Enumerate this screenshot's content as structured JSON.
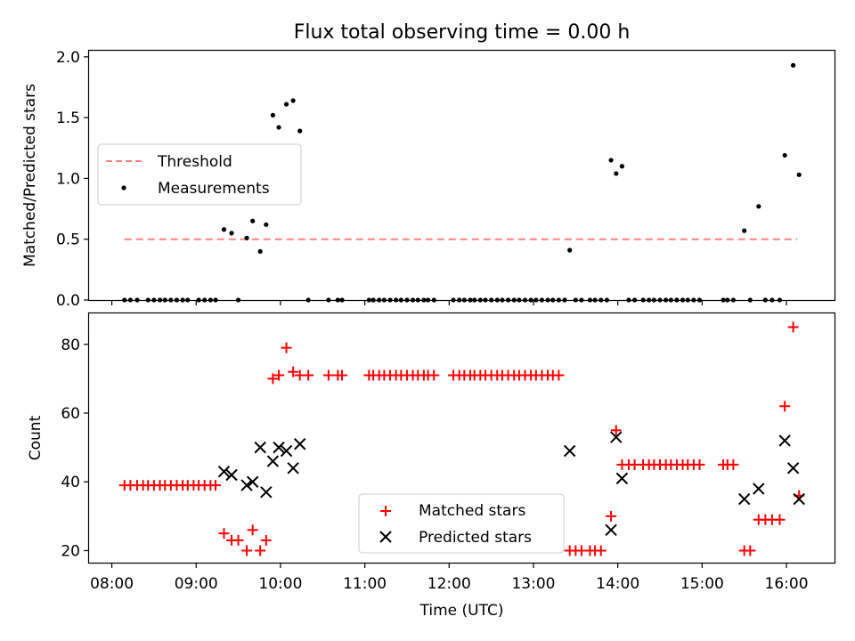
{
  "chart_data": [
    {
      "type": "scatter",
      "title": "Flux total observing time = 0.00 h",
      "xlabel": "",
      "ylabel": "Matched/Predicted stars",
      "ylim": [
        0.0,
        2.05
      ],
      "yticks": [
        0.0,
        0.5,
        1.0,
        1.5,
        2.0
      ],
      "ytick_labels": [
        "0.0",
        "0.5",
        "1.0",
        "1.5",
        "2.0"
      ],
      "legend": {
        "placement": "center-left",
        "entries": [
          "Threshold",
          "Measurements"
        ]
      },
      "threshold": {
        "name": "Threshold",
        "value": 0.5,
        "x_range": [
          8.15,
          16.13
        ],
        "color": "#ff8080"
      },
      "series": [
        {
          "name": "Measurements",
          "color": "#000000",
          "x": [
            8.15,
            8.22,
            8.3,
            8.43,
            8.5,
            8.57,
            8.63,
            8.7,
            8.77,
            8.84,
            8.9,
            9.03,
            9.1,
            9.17,
            9.23,
            9.33,
            9.42,
            9.5,
            9.6,
            9.67,
            9.76,
            9.83,
            9.91,
            9.98,
            10.07,
            10.15,
            10.23,
            10.33,
            10.57,
            10.68,
            10.73,
            11.05,
            11.1,
            11.17,
            11.23,
            11.3,
            11.37,
            11.43,
            11.5,
            11.57,
            11.63,
            11.7,
            11.75,
            11.82,
            12.05,
            12.12,
            12.18,
            12.25,
            12.3,
            12.37,
            12.43,
            12.5,
            12.57,
            12.63,
            12.7,
            12.77,
            12.83,
            12.9,
            12.97,
            13.03,
            13.1,
            13.17,
            13.23,
            13.3,
            13.37,
            13.43,
            13.5,
            13.57,
            13.67,
            13.73,
            13.8,
            13.87,
            13.92,
            13.98,
            14.05,
            14.13,
            14.2,
            14.3,
            14.37,
            14.43,
            14.5,
            14.57,
            14.63,
            14.7,
            14.77,
            14.83,
            14.9,
            14.97,
            15.25,
            15.3,
            15.37,
            15.5,
            15.57,
            15.67,
            15.75,
            15.83,
            15.92,
            15.98,
            16.08,
            16.15
          ],
          "y": [
            0,
            0,
            0,
            0,
            0,
            0,
            0,
            0,
            0,
            0,
            0,
            0,
            0,
            0,
            0,
            0.58,
            0.55,
            0,
            0.51,
            0.65,
            0.4,
            0.62,
            1.52,
            1.42,
            1.61,
            1.64,
            1.39,
            0,
            0,
            0,
            0,
            0,
            0,
            0,
            0,
            0,
            0,
            0,
            0,
            0,
            0,
            0,
            0,
            0,
            0,
            0,
            0,
            0,
            0,
            0,
            0,
            0,
            0,
            0,
            0,
            0,
            0,
            0,
            0,
            0,
            0,
            0,
            0,
            0,
            0,
            0.41,
            0,
            0,
            0,
            0,
            0,
            0,
            1.15,
            1.04,
            1.1,
            0,
            0,
            0,
            0,
            0,
            0,
            0,
            0,
            0,
            0,
            0,
            0,
            0,
            0,
            0,
            0,
            0.57,
            0,
            0.77,
            0,
            0,
            0,
            1.19,
            1.93,
            1.03
          ]
        }
      ]
    },
    {
      "type": "scatter",
      "title": "",
      "xlabel": "Time (UTC)",
      "ylabel": "Count",
      "xlim": [
        7.73,
        16.57
      ],
      "xticks": [
        8,
        9,
        10,
        11,
        12,
        13,
        14,
        15,
        16
      ],
      "xtick_labels": [
        "08:00",
        "09:00",
        "10:00",
        "11:00",
        "12:00",
        "13:00",
        "14:00",
        "15:00",
        "16:00"
      ],
      "ylim": [
        16.5,
        89
      ],
      "yticks": [
        20,
        40,
        60,
        80
      ],
      "ytick_labels": [
        "20",
        "40",
        "60",
        "80"
      ],
      "legend": {
        "placement": "bottom-center",
        "entries": [
          "Matched stars",
          "Predicted stars"
        ]
      },
      "series": [
        {
          "name": "Matched stars",
          "marker": "plus",
          "color": "#ff0000",
          "x": [
            8.15,
            8.22,
            8.3,
            8.37,
            8.43,
            8.5,
            8.57,
            8.63,
            8.7,
            8.77,
            8.84,
            8.9,
            8.97,
            9.03,
            9.1,
            9.17,
            9.23,
            9.33,
            9.42,
            9.5,
            9.6,
            9.67,
            9.76,
            9.83,
            9.91,
            9.98,
            10.07,
            10.15,
            10.23,
            10.33,
            10.57,
            10.68,
            10.73,
            11.05,
            11.1,
            11.17,
            11.23,
            11.3,
            11.37,
            11.43,
            11.5,
            11.57,
            11.63,
            11.7,
            11.75,
            11.82,
            12.05,
            12.12,
            12.18,
            12.25,
            12.3,
            12.37,
            12.43,
            12.5,
            12.57,
            12.63,
            12.7,
            12.77,
            12.83,
            12.9,
            12.97,
            13.03,
            13.1,
            13.17,
            13.23,
            13.3,
            13.43,
            13.5,
            13.57,
            13.67,
            13.73,
            13.8,
            13.92,
            13.98,
            14.05,
            14.13,
            14.2,
            14.3,
            14.37,
            14.43,
            14.5,
            14.57,
            14.63,
            14.7,
            14.77,
            14.83,
            14.9,
            14.97,
            15.25,
            15.3,
            15.37,
            15.5,
            15.57,
            15.67,
            15.75,
            15.83,
            15.92,
            15.98,
            16.08,
            16.15
          ],
          "y": [
            39,
            39,
            39,
            39,
            39,
            39,
            39,
            39,
            39,
            39,
            39,
            39,
            39,
            39,
            39,
            39,
            39,
            25,
            23,
            23,
            20,
            26,
            20,
            23,
            70,
            71,
            79,
            72,
            71,
            71,
            71,
            71,
            71,
            71,
            71,
            71,
            71,
            71,
            71,
            71,
            71,
            71,
            71,
            71,
            71,
            71,
            71,
            71,
            71,
            71,
            71,
            71,
            71,
            71,
            71,
            71,
            71,
            71,
            71,
            71,
            71,
            71,
            71,
            71,
            71,
            71,
            20,
            20,
            20,
            20,
            20,
            20,
            30,
            55,
            45,
            45,
            45,
            45,
            45,
            45,
            45,
            45,
            45,
            45,
            45,
            45,
            45,
            45,
            45,
            45,
            45,
            20,
            20,
            29,
            29,
            29,
            29,
            62,
            85,
            36
          ]
        },
        {
          "name": "Predicted stars",
          "marker": "x",
          "color": "#000000",
          "x": [
            9.33,
            9.42,
            9.6,
            9.67,
            9.76,
            9.83,
            9.91,
            9.98,
            10.07,
            10.15,
            10.23,
            13.43,
            13.92,
            13.98,
            14.05,
            15.5,
            15.67,
            15.98,
            16.08,
            16.15
          ],
          "y": [
            43,
            42,
            39,
            40,
            50,
            37,
            46,
            50,
            49,
            44,
            51,
            49,
            26,
            53,
            41,
            35,
            38,
            52,
            44,
            35
          ]
        }
      ]
    }
  ]
}
